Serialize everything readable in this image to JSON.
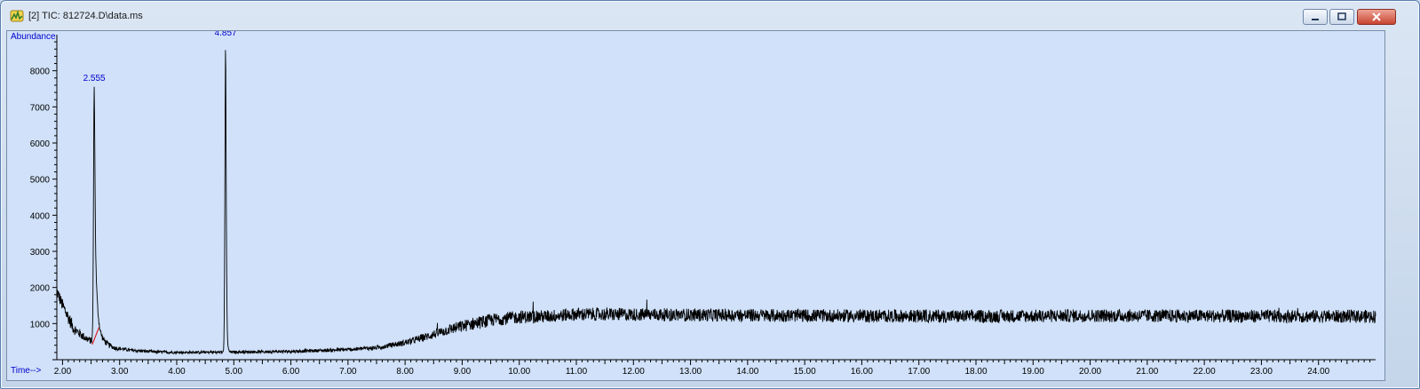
{
  "window": {
    "title": "[2] TIC: 812724.D\\data.ms",
    "icon": "chromatogram-app-icon",
    "controls": [
      "minimize",
      "restore",
      "close"
    ]
  },
  "colors": {
    "plot_background": "#d0e1f9",
    "trace": "#000000",
    "axis_label": "#0000cc",
    "baseline_marker": "#e00000"
  },
  "chart_data": {
    "type": "line",
    "title": "",
    "ylabel": "Abundance",
    "xlabel": "Time-->",
    "xlim": [
      1.9,
      25.0
    ],
    "ylim": [
      0,
      9000
    ],
    "yticks": [
      1000,
      2000,
      3000,
      4000,
      5000,
      6000,
      7000,
      8000
    ],
    "xticks": [
      "2.00",
      "3.00",
      "4.00",
      "5.00",
      "6.00",
      "7.00",
      "8.00",
      "9.00",
      "10.00",
      "11.00",
      "12.00",
      "13.00",
      "14.00",
      "15.00",
      "16.00",
      "17.00",
      "18.00",
      "19.00",
      "20.00",
      "21.00",
      "22.00",
      "23.00",
      "24.00"
    ],
    "grid": false,
    "peaks": [
      {
        "label": "2.555",
        "rt": 2.555,
        "height": 7650
      },
      {
        "label": "4.857",
        "rt": 4.857,
        "height": 8900
      }
    ],
    "integration_baselines": [
      {
        "from": [
          2.52,
          420
        ],
        "to": [
          2.64,
          900
        ]
      }
    ],
    "baseline_profile": [
      [
        1.9,
        1900
      ],
      [
        2.0,
        1500
      ],
      [
        2.2,
        850
      ],
      [
        2.4,
        600
      ],
      [
        2.5,
        520
      ],
      [
        2.7,
        500
      ],
      [
        2.9,
        330
      ],
      [
        3.2,
        260
      ],
      [
        3.6,
        220
      ],
      [
        4.0,
        200
      ],
      [
        5.0,
        210
      ],
      [
        6.0,
        230
      ],
      [
        7.0,
        280
      ],
      [
        7.5,
        330
      ],
      [
        8.0,
        470
      ],
      [
        8.4,
        650
      ],
      [
        8.8,
        850
      ],
      [
        9.2,
        1000
      ],
      [
        9.6,
        1120
      ],
      [
        10.0,
        1180
      ],
      [
        10.5,
        1200
      ],
      [
        11.0,
        1260
      ],
      [
        12.0,
        1250
      ],
      [
        14.0,
        1230
      ],
      [
        16.0,
        1210
      ],
      [
        18.0,
        1200
      ],
      [
        20.0,
        1220
      ],
      [
        22.0,
        1210
      ],
      [
        24.0,
        1200
      ],
      [
        25.0,
        1200
      ]
    ],
    "noise_amplitude": 180
  }
}
